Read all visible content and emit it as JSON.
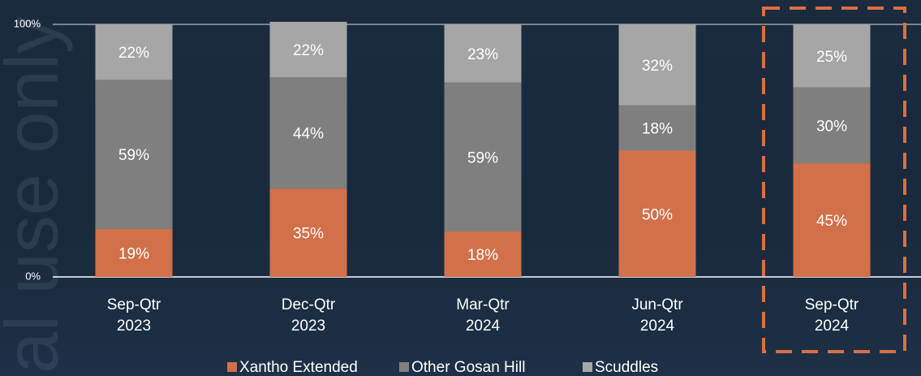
{
  "chart_data": {
    "type": "stacked_bar",
    "watermark": "ial use only",
    "categories": [
      [
        "Sep-Qtr",
        "2023"
      ],
      [
        "Dec-Qtr",
        "2023"
      ],
      [
        "Mar-Qtr",
        "2024"
      ],
      [
        "Jun-Qtr",
        "2024"
      ],
      [
        "Sep-Qtr",
        "2024"
      ]
    ],
    "series": [
      {
        "name": "Xantho Extended",
        "color": "#d2704a",
        "values": [
          19,
          35,
          18,
          50,
          45
        ],
        "value_labels": [
          "19%",
          "35%",
          "18%",
          "50%",
          "45%"
        ]
      },
      {
        "name": "Other Gosan Hill",
        "color": "#7f7f7f",
        "values": [
          59,
          44,
          59,
          18,
          30
        ],
        "value_labels": [
          "59%",
          "44%",
          "59%",
          "18%",
          "30%"
        ]
      },
      {
        "name": "Scuddles",
        "color": "#a6a6a6",
        "values": [
          22,
          22,
          23,
          32,
          25
        ],
        "value_labels": [
          "22%",
          "22%",
          "23%",
          "32%",
          "25%"
        ]
      }
    ],
    "ylim": [
      0,
      100
    ],
    "yticks": [
      {
        "value": 0,
        "label": "0%"
      },
      {
        "value": 100,
        "label": "100%"
      }
    ],
    "legend": "bottom",
    "highlight_color": "#d86f45"
  }
}
